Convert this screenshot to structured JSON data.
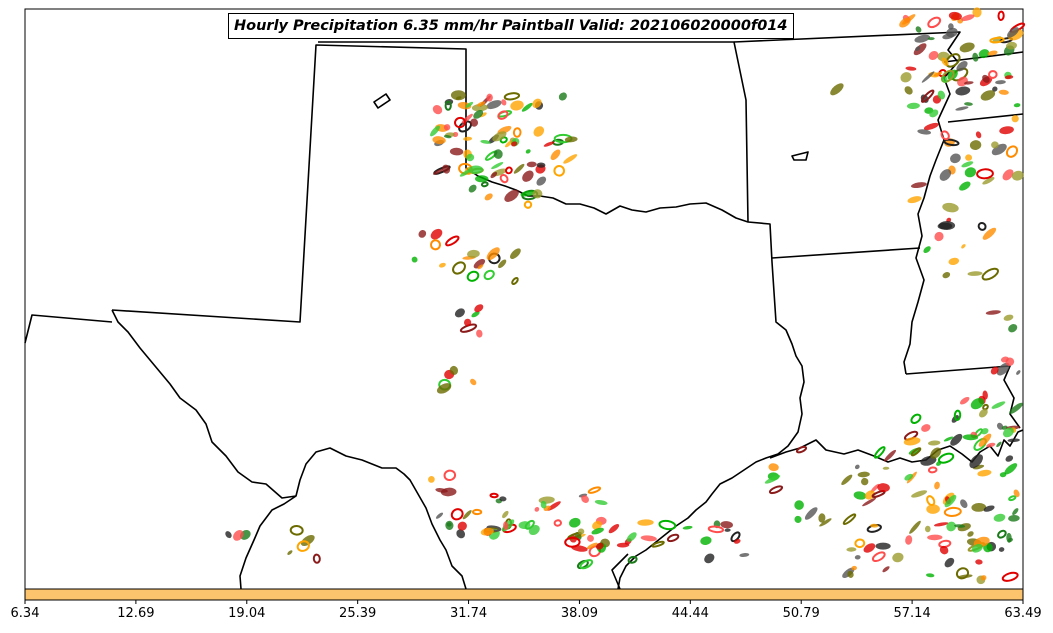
{
  "title": "Hourly Precipitation 6.35 mm/hr Paintball Valid: 202106020000f014",
  "colorbar": {
    "ticks": [
      "6.34",
      "12.69",
      "19.04",
      "25.39",
      "31.74",
      "38.09",
      "44.44",
      "50.79",
      "57.14",
      "63.49"
    ],
    "fill_color": "#fcc46c"
  },
  "paintball_colors": [
    "#ff4d4d",
    "#e00000",
    "#8b1a1a",
    "#ff8c00",
    "#ffa500",
    "#33cc33",
    "#00b300",
    "#1a7a1a",
    "#9b9b2e",
    "#6b6b00",
    "#555555",
    "#222222"
  ],
  "boundary_color": "#000000"
}
